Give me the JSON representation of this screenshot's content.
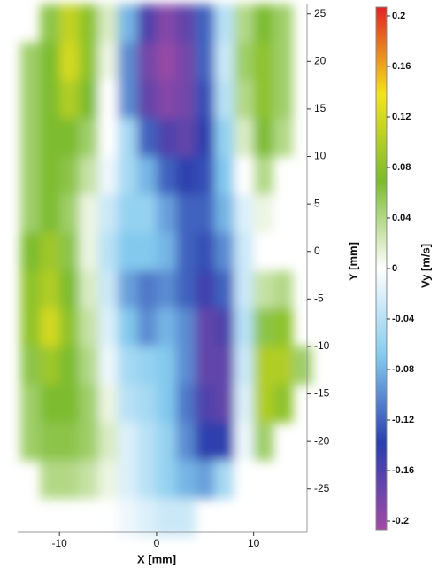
{
  "chart_data": {
    "type": "heatmap",
    "xlabel": "X [mm]",
    "ylabel": "Y [mm]",
    "colorbar_label": "Vy [m/s]",
    "x": [
      -13,
      -11,
      -9,
      -7,
      -5,
      -3,
      -1,
      1,
      3,
      5,
      7,
      9,
      11,
      13,
      15
    ],
    "y": [
      24,
      20,
      16,
      12,
      8,
      4,
      0,
      -4,
      -8,
      -12,
      -16,
      -20,
      -24,
      -28
    ],
    "z": [
      [
        null,
        0.06,
        0.11,
        0.08,
        0.02,
        -0.08,
        -0.16,
        -0.19,
        -0.17,
        -0.12,
        -0.04,
        0.04,
        0.07,
        0.05,
        null
      ],
      [
        0.05,
        0.07,
        0.12,
        0.08,
        0.01,
        -0.1,
        -0.18,
        -0.2,
        -0.18,
        -0.12,
        -0.03,
        0.05,
        0.08,
        0.05,
        null
      ],
      [
        0.05,
        0.07,
        0.1,
        0.07,
        0.0,
        -0.1,
        -0.17,
        -0.19,
        -0.18,
        -0.13,
        -0.04,
        0.04,
        0.08,
        0.05,
        null
      ],
      [
        0.05,
        0.07,
        0.07,
        0.05,
        0.0,
        -0.05,
        -0.12,
        -0.16,
        -0.17,
        -0.14,
        -0.06,
        0.02,
        0.07,
        0.04,
        null
      ],
      [
        0.05,
        0.07,
        0.06,
        0.03,
        -0.01,
        -0.05,
        -0.08,
        -0.12,
        -0.14,
        -0.13,
        -0.07,
        0.0,
        0.04,
        null,
        null
      ],
      [
        0.05,
        0.07,
        0.05,
        0.01,
        -0.03,
        -0.06,
        -0.06,
        -0.09,
        -0.12,
        -0.12,
        -0.08,
        -0.02,
        0.01,
        null,
        null
      ],
      [
        0.07,
        0.09,
        0.06,
        0.01,
        -0.04,
        -0.07,
        -0.07,
        -0.08,
        -0.12,
        -0.13,
        -0.1,
        -0.03,
        0.0,
        null,
        null
      ],
      [
        0.08,
        0.1,
        0.07,
        0.02,
        -0.03,
        -0.09,
        -0.11,
        -0.1,
        -0.12,
        -0.15,
        -0.12,
        -0.03,
        0.03,
        0.04,
        null
      ],
      [
        0.08,
        0.12,
        0.08,
        0.03,
        -0.02,
        -0.07,
        -0.1,
        -0.08,
        -0.1,
        -0.17,
        -0.16,
        -0.04,
        0.06,
        0.08,
        null
      ],
      [
        0.06,
        0.09,
        0.07,
        0.04,
        -0.01,
        -0.05,
        -0.06,
        -0.07,
        -0.1,
        -0.17,
        -0.17,
        -0.03,
        0.1,
        0.1,
        0.05
      ],
      [
        0.05,
        0.07,
        0.07,
        0.05,
        0.01,
        -0.04,
        -0.05,
        -0.07,
        -0.11,
        -0.16,
        -0.17,
        -0.02,
        0.1,
        0.08,
        null
      ],
      [
        0.05,
        0.06,
        0.06,
        0.05,
        0.02,
        -0.02,
        -0.04,
        -0.06,
        -0.1,
        -0.14,
        -0.14,
        -0.01,
        0.05,
        null,
        null
      ],
      [
        null,
        0.04,
        0.04,
        0.03,
        0.01,
        -0.02,
        -0.04,
        -0.06,
        -0.08,
        -0.09,
        -0.05,
        0.0,
        null,
        null,
        null
      ],
      [
        null,
        null,
        null,
        null,
        null,
        -0.01,
        -0.02,
        -0.03,
        -0.03,
        null,
        null,
        null,
        null,
        null,
        null
      ]
    ],
    "xlim": [
      -14.3,
      15.5
    ],
    "ylim": [
      -29.5,
      26
    ],
    "xticks": [
      -10,
      0,
      10
    ],
    "yticks": [
      -25,
      -20,
      -15,
      -10,
      -5,
      0,
      5,
      10,
      15,
      20,
      25
    ],
    "clim": [
      -0.207,
      0.207
    ],
    "cticks": [
      -0.2,
      -0.16,
      -0.12,
      -0.08,
      -0.04,
      0,
      0.04,
      0.08,
      0.12,
      0.16,
      0.2
    ],
    "colorscale": [
      "#a24aa6",
      "#2a3fae",
      "#84cbef",
      "#ffffff",
      "#7bbb2e",
      "#f2e41c",
      "#e02424"
    ]
  }
}
